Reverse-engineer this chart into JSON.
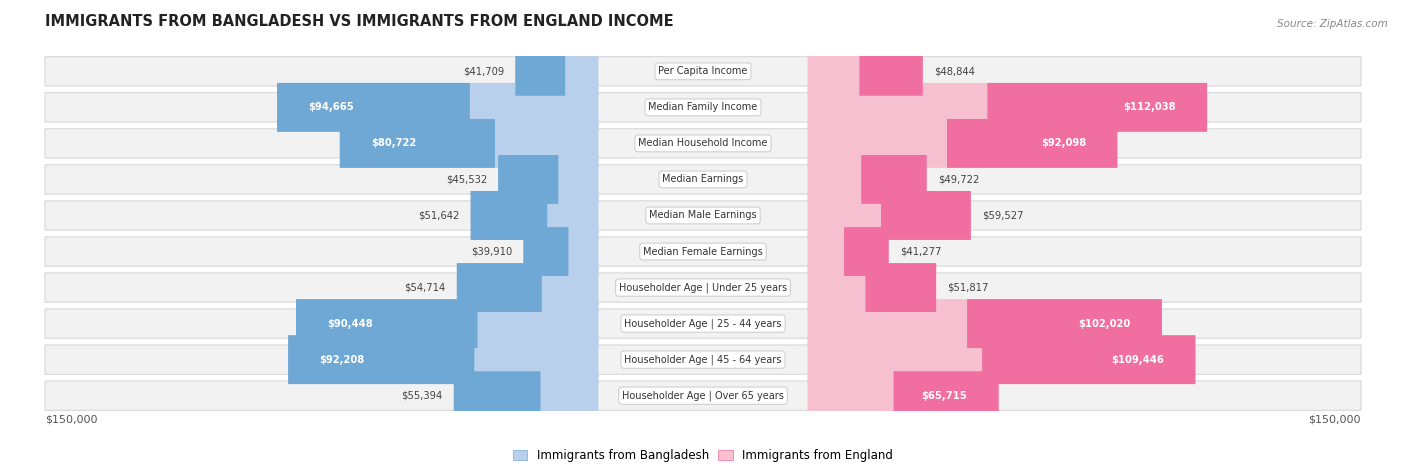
{
  "title": "IMMIGRANTS FROM BANGLADESH VS IMMIGRANTS FROM ENGLAND INCOME",
  "source": "Source: ZipAtlas.com",
  "categories": [
    "Per Capita Income",
    "Median Family Income",
    "Median Household Income",
    "Median Earnings",
    "Median Male Earnings",
    "Median Female Earnings",
    "Householder Age | Under 25 years",
    "Householder Age | 25 - 44 years",
    "Householder Age | 45 - 64 years",
    "Householder Age | Over 65 years"
  ],
  "bangladesh_values": [
    41709,
    94665,
    80722,
    45532,
    51642,
    39910,
    54714,
    90448,
    92208,
    55394
  ],
  "england_values": [
    48844,
    112038,
    92098,
    49722,
    59527,
    41277,
    51817,
    102020,
    109446,
    65715
  ],
  "max_value": 150000,
  "bangladesh_color_light": "#b8d0eb",
  "bangladesh_color_dark": "#6fa8d4",
  "england_color_light": "#f7c0d0",
  "england_color_dark": "#f06fa0",
  "bangladesh_label": "Immigrants from Bangladesh",
  "england_label": "Immigrants from England",
  "row_bg_color": "#f2f2f2",
  "row_border_color": "#d8d8d8",
  "bar_label_inside_color": "#ffffff",
  "bar_label_outside_color": "#444444",
  "label_box_color": "#ffffff",
  "label_box_edge_color": "#d0d0d0",
  "inside_threshold": 65000,
  "title_color": "#222222",
  "source_color": "#888888"
}
